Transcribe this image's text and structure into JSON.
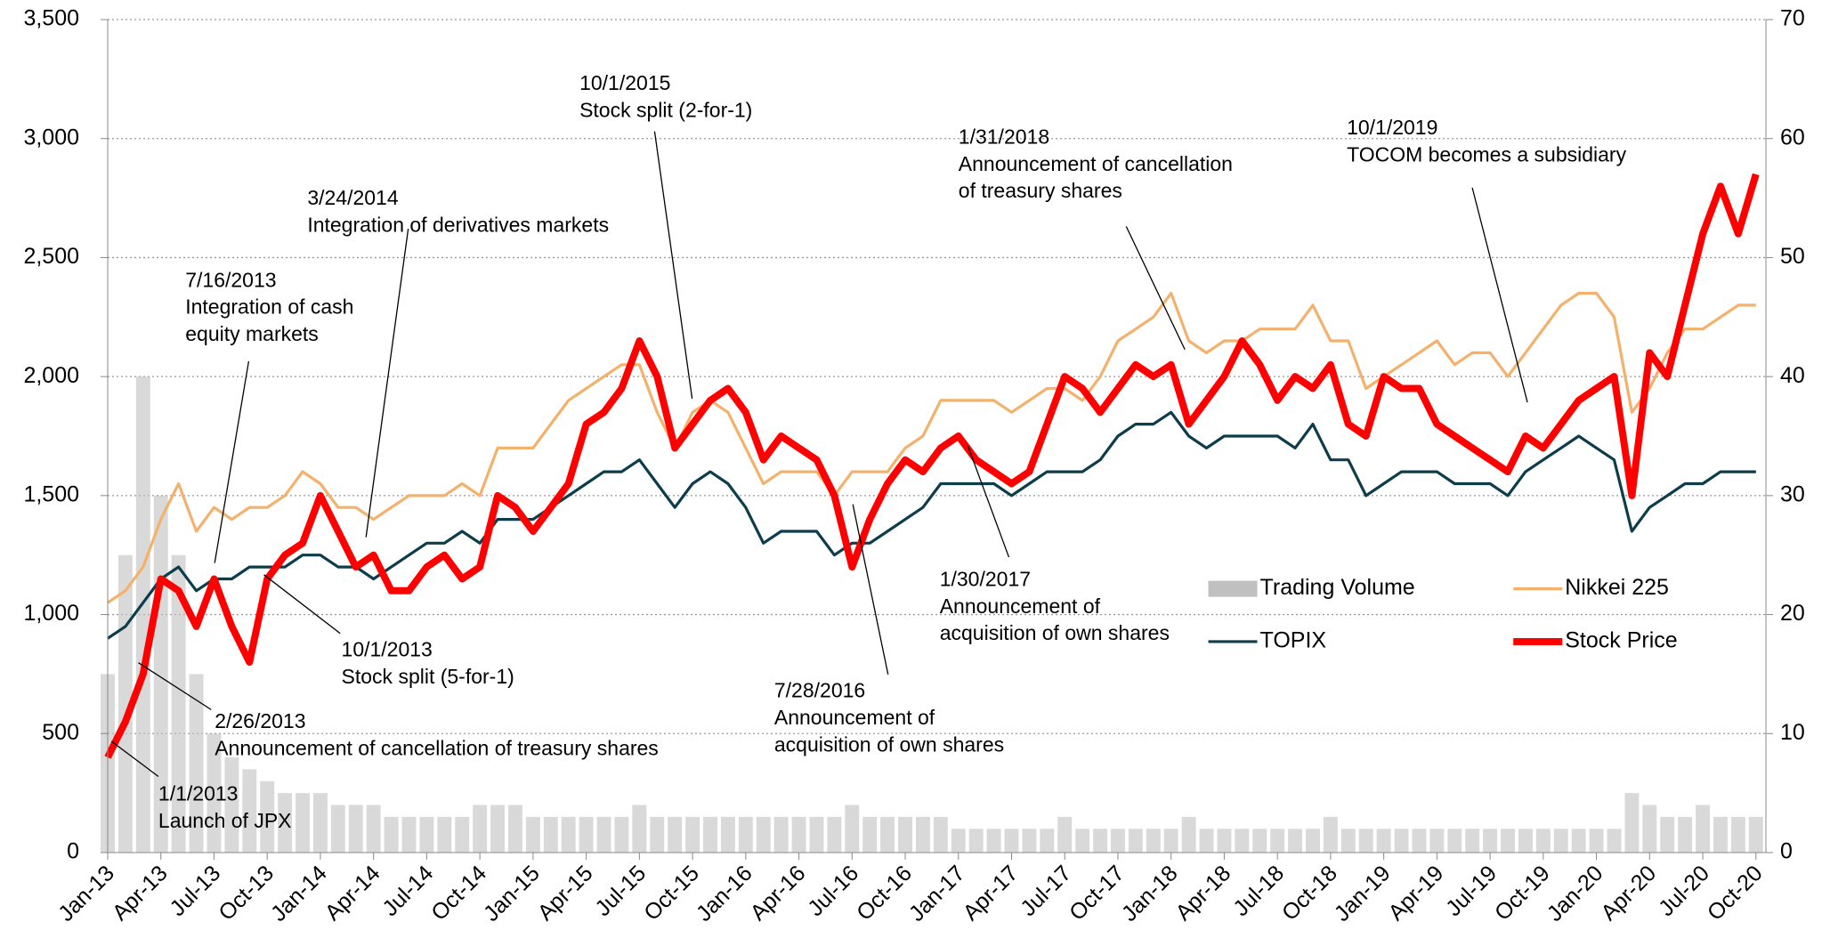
{
  "chart_data": {
    "type": "line",
    "categories": [
      "Jan-13",
      null,
      null,
      "Apr-13",
      null,
      null,
      "Jul-13",
      null,
      null,
      "Oct-13",
      null,
      null,
      "Jan-14",
      null,
      null,
      "Apr-14",
      null,
      null,
      "Jul-14",
      null,
      null,
      "Oct-14",
      null,
      null,
      "Jan-15",
      null,
      null,
      "Apr-15",
      null,
      null,
      "Jul-15",
      null,
      null,
      "Oct-15",
      null,
      null,
      "Jan-16",
      null,
      null,
      "Apr-16",
      null,
      null,
      "Jul-16",
      null,
      null,
      "Oct-16",
      null,
      null,
      "Jan-17",
      null,
      null,
      "Apr-17",
      null,
      null,
      "Jul-17",
      null,
      null,
      "Oct-17",
      null,
      null,
      "Jan-18",
      null,
      null,
      "Apr-18",
      null,
      null,
      "Jul-18",
      null,
      null,
      "Oct-18",
      null,
      null,
      "Jan-19",
      null,
      null,
      "Apr-19",
      null,
      null,
      "Jul-19",
      null,
      null,
      "Oct-19",
      null,
      null,
      "Jan-20",
      null,
      null,
      "Apr-20",
      null,
      null,
      "Jul-20",
      null,
      null,
      "Oct-20"
    ],
    "series": [
      {
        "name": "Trading Volume",
        "type": "bar",
        "axis": "y2",
        "color": "#c0c0c0",
        "values": [
          15,
          25,
          40,
          30,
          25,
          15,
          10,
          8,
          7,
          6,
          5,
          5,
          5,
          4,
          4,
          4,
          3,
          3,
          3,
          3,
          3,
          4,
          4,
          4,
          3,
          3,
          3,
          3,
          3,
          3,
          4,
          3,
          3,
          3,
          3,
          3,
          3,
          3,
          3,
          3,
          3,
          3,
          4,
          3,
          3,
          3,
          3,
          3,
          2,
          2,
          2,
          2,
          2,
          2,
          3,
          2,
          2,
          2,
          2,
          2,
          2,
          3,
          2,
          2,
          2,
          2,
          2,
          2,
          2,
          3,
          2,
          2,
          2,
          2,
          2,
          2,
          2,
          2,
          2,
          2,
          2,
          2,
          2,
          2,
          2,
          2,
          5,
          4,
          3,
          3,
          4,
          3,
          3,
          3
        ]
      },
      {
        "name": "Nikkei 225",
        "color": "#f4b16b",
        "values": [
          1050,
          1100,
          1200,
          1400,
          1550,
          1350,
          1450,
          1400,
          1450,
          1450,
          1500,
          1600,
          1550,
          1450,
          1450,
          1400,
          1450,
          1500,
          1500,
          1500,
          1550,
          1500,
          1700,
          1700,
          1700,
          1800,
          1900,
          1950,
          2000,
          2050,
          2050,
          1850,
          1700,
          1850,
          1900,
          1850,
          1700,
          1550,
          1600,
          1600,
          1600,
          1500,
          1600,
          1600,
          1600,
          1700,
          1750,
          1900,
          1900,
          1900,
          1900,
          1850,
          1900,
          1950,
          1950,
          1900,
          2000,
          2150,
          2200,
          2250,
          2350,
          2150,
          2100,
          2150,
          2150,
          2200,
          2200,
          2200,
          2300,
          2150,
          2150,
          1950,
          2000,
          2050,
          2100,
          2150,
          2050,
          2100,
          2100,
          2000,
          2100,
          2200,
          2300,
          2350,
          2350,
          2250,
          1850,
          1950,
          2100,
          2200,
          2200,
          2250,
          2300,
          2300
        ]
      },
      {
        "name": "TOPIX",
        "color": "#0d3d4a",
        "values": [
          900,
          950,
          1050,
          1150,
          1200,
          1100,
          1150,
          1150,
          1200,
          1200,
          1200,
          1250,
          1250,
          1200,
          1200,
          1150,
          1200,
          1250,
          1300,
          1300,
          1350,
          1300,
          1400,
          1400,
          1400,
          1450,
          1500,
          1550,
          1600,
          1600,
          1650,
          1550,
          1450,
          1550,
          1600,
          1550,
          1450,
          1300,
          1350,
          1350,
          1350,
          1250,
          1300,
          1300,
          1350,
          1400,
          1450,
          1550,
          1550,
          1550,
          1550,
          1500,
          1550,
          1600,
          1600,
          1600,
          1650,
          1750,
          1800,
          1800,
          1850,
          1750,
          1700,
          1750,
          1750,
          1750,
          1750,
          1700,
          1800,
          1650,
          1650,
          1500,
          1550,
          1600,
          1600,
          1600,
          1550,
          1550,
          1550,
          1500,
          1600,
          1650,
          1700,
          1750,
          1700,
          1650,
          1350,
          1450,
          1500,
          1550,
          1550,
          1600,
          1600,
          1600
        ]
      },
      {
        "name": "Stock Price",
        "color": "#ff0000",
        "values": [
          400,
          550,
          750,
          1150,
          1100,
          950,
          1150,
          950,
          800,
          1150,
          1250,
          1300,
          1500,
          1350,
          1200,
          1250,
          1100,
          1100,
          1200,
          1250,
          1150,
          1200,
          1500,
          1450,
          1350,
          1450,
          1550,
          1800,
          1850,
          1950,
          2150,
          2000,
          1700,
          1800,
          1900,
          1950,
          1850,
          1650,
          1750,
          1700,
          1650,
          1500,
          1200,
          1400,
          1550,
          1650,
          1600,
          1700,
          1750,
          1650,
          1600,
          1550,
          1600,
          1800,
          2000,
          1950,
          1850,
          1950,
          2050,
          2000,
          2050,
          1800,
          1900,
          2000,
          2150,
          2050,
          1900,
          2000,
          1950,
          2050,
          1800,
          1750,
          2000,
          1950,
          1950,
          1800,
          1750,
          1700,
          1650,
          1600,
          1750,
          1700,
          1800,
          1900,
          1950,
          2000,
          1500,
          2100,
          2000,
          2300,
          2600,
          2800,
          2600,
          2850
        ]
      }
    ],
    "ylim": [
      0,
      3500
    ],
    "yticks": [
      0,
      500,
      {
        "value": 1000,
        "label": "1,000"
      },
      {
        "value": 1500,
        "label": "1,500"
      },
      {
        "value": 2000,
        "label": "2,000"
      },
      {
        "value": 2500,
        "label": "2,500"
      },
      {
        "value": 3000,
        "label": "3,000"
      },
      {
        "value": 3500,
        "label": "3,500"
      }
    ],
    "y2lim": [
      0,
      70
    ],
    "y2ticks": [
      0,
      10,
      20,
      30,
      40,
      50,
      60,
      70
    ],
    "grid": true,
    "annotations": [
      {
        "lines": [
          "1/1/2013",
          "Launch of JPX"
        ]
      },
      {
        "lines": [
          "2/26/2013",
          "Announcement of cancellation of treasury shares"
        ]
      },
      {
        "lines": [
          "7/16/2013",
          "Integration of cash",
          "equity markets"
        ]
      },
      {
        "lines": [
          "3/24/2014",
          "Integration of derivatives markets"
        ]
      },
      {
        "lines": [
          "10/1/2013",
          "Stock split (5-for-1)"
        ]
      },
      {
        "lines": [
          "10/1/2015",
          "Stock split (2-for-1)"
        ]
      },
      {
        "lines": [
          "7/28/2016",
          "Announcement of",
          "acquisition of own shares"
        ]
      },
      {
        "lines": [
          "1/30/2017",
          "Announcement of",
          "acquisition of own shares"
        ]
      },
      {
        "lines": [
          "1/31/2018",
          "Announcement of cancellation",
          "of treasury shares"
        ]
      },
      {
        "lines": [
          "10/1/2019",
          "TOCOM becomes a subsidiary"
        ]
      }
    ]
  }
}
